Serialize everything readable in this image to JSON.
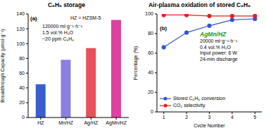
{
  "chart_data": [
    {
      "type": "bar",
      "title": "C₆H₆ storage",
      "panel_label": "(a)",
      "annotations": [
        "HZ = HZSM-5",
        "120000 ml·g⁻¹·h⁻¹",
        "1.5 vol.% H₂O",
        "~20 ppm C₆H₆"
      ],
      "y_label": "Breakthrough Capacity (μmol·g⁻¹)",
      "categories": [
        "HZ",
        "Mn/HZ",
        "Ag/HZ",
        "AgMn/HZ"
      ],
      "values": [
        45,
        78,
        94,
        132
      ],
      "colors": [
        "#3a5fcd",
        "#8a7fe0",
        "#e8505a",
        "#e040a0"
      ],
      "ylim": [
        0,
        140
      ],
      "yticks": [
        0,
        20,
        40,
        60,
        80,
        100,
        120,
        140
      ],
      "grid": false
    },
    {
      "type": "line",
      "title": "Air-plasma oxidation of stored C₆H₆",
      "panel_label": "(b)",
      "subtitle": "AgMn/HZ",
      "annotations": [
        "20000 ml·g⁻¹·h⁻¹",
        "0.4 vol.% H₂O",
        "Input power: 6 W",
        "24-min discharge"
      ],
      "x_label": "Cycle Number",
      "y_label": "Percentage (%)",
      "x": [
        1,
        2,
        3,
        4,
        5
      ],
      "xlim": [
        0.7,
        5.3
      ],
      "xticks": [
        1,
        2,
        3,
        4,
        5
      ],
      "ylim": [
        0,
        100
      ],
      "yticks": [
        0,
        20,
        40,
        60,
        80,
        100
      ],
      "series": [
        {
          "name": "Stored C₆H₆ conversion",
          "color": "#3355cc",
          "marker": "circle",
          "values": [
            66,
            81,
            88,
            94,
            95
          ]
        },
        {
          "name": "CO₂ selectivity",
          "color": "#e02020",
          "marker": "circle",
          "values": [
            99,
            99,
            98,
            98,
            98
          ]
        }
      ],
      "legend": "lower left",
      "grid": false
    }
  ]
}
